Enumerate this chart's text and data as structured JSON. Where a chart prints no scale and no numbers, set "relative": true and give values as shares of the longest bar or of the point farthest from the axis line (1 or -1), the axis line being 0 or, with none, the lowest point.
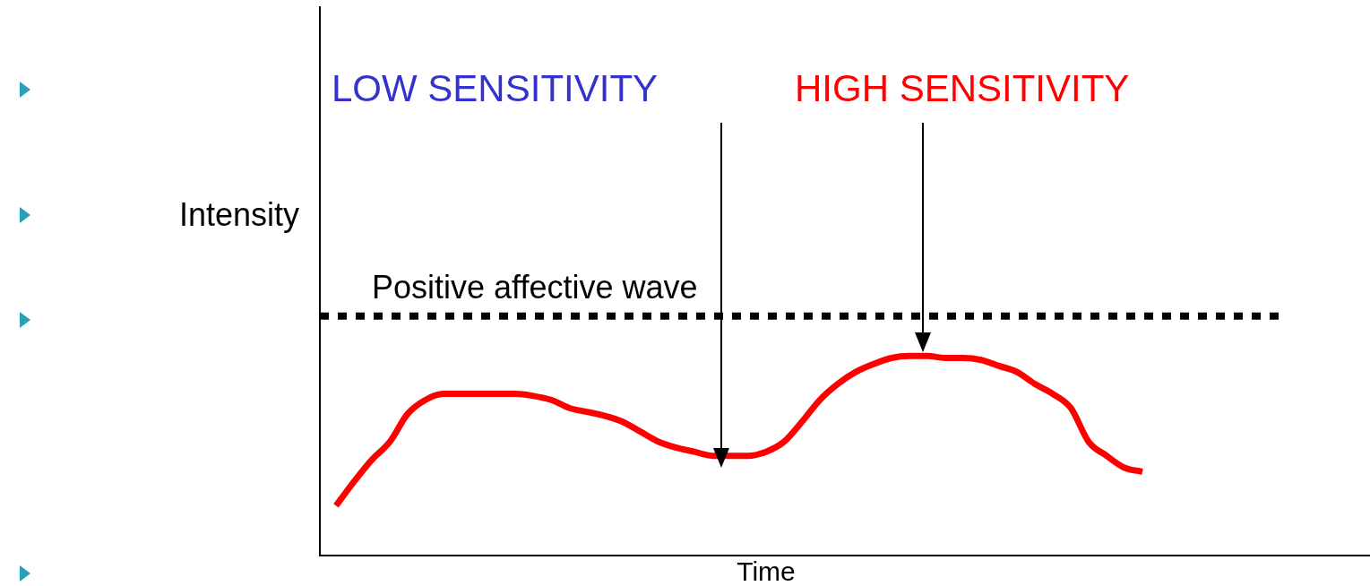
{
  "chart_data": {
    "type": "line",
    "relative": true,
    "xlabel": "Time",
    "ylabel": "Intensity",
    "categories": [
      null,
      null,
      null,
      null,
      null,
      null,
      null,
      null,
      null,
      null,
      null,
      null,
      null,
      null,
      null,
      null,
      null,
      null,
      null,
      null,
      null,
      null,
      null,
      null,
      null,
      null,
      null,
      null,
      null,
      null,
      null,
      null,
      null,
      null,
      null,
      null,
      null,
      null,
      null,
      null,
      null,
      null,
      null,
      null,
      null,
      null
    ],
    "series": [
      {
        "color": "#ff0000",
        "values": [
          0.25,
          0.37,
          0.48,
          0.57,
          0.71,
          0.78,
          0.81,
          0.81,
          0.81,
          0.81,
          0.81,
          0.8,
          0.78,
          0.74,
          0.72,
          0.7,
          0.67,
          0.62,
          0.57,
          0.54,
          0.52,
          0.5,
          0.5,
          0.5,
          0.52,
          0.57,
          0.67,
          0.78,
          0.86,
          0.92,
          0.96,
          0.99,
          1.0,
          1.0,
          0.99,
          0.99,
          0.98,
          0.95,
          0.92,
          0.86,
          0.81,
          0.74,
          0.57,
          0.5,
          0.44,
          0.42
        ]
      }
    ],
    "ref_lines": [
      {
        "axis": "y",
        "value": 1.2,
        "label": "Positive affective wave",
        "color": "#000000",
        "line_style": "dotted"
      }
    ],
    "annotations": [
      "LOW SENSITIVITY",
      "HIGH SENSITIVITY"
    ],
    "grid": false,
    "legend": false,
    "marker": "none",
    "line_style": "solid",
    "tick_labels": false
  }
}
